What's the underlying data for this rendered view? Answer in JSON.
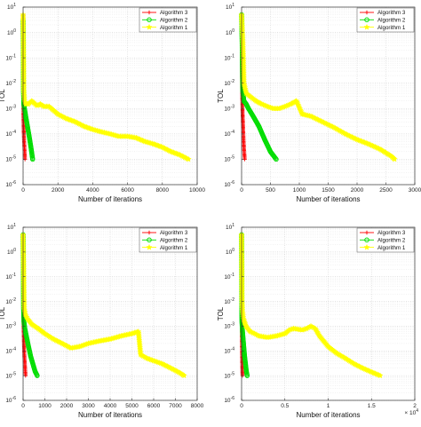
{
  "chart_data": [
    {
      "type": "line",
      "xlabel": "Number of iterations",
      "ylabel": "TOL",
      "xlim": [
        0,
        10000
      ],
      "xticks": [
        "0",
        "2000",
        "4000",
        "6000",
        "8000",
        "10000"
      ],
      "xtick_values": [
        0,
        2000,
        4000,
        6000,
        8000,
        10000
      ],
      "x_multiplier": "",
      "yscale": "log",
      "ylim": [
        1e-06,
        10
      ],
      "yticks_exp": [
        "-6",
        "-5",
        "-4",
        "-3",
        "-2",
        "-1",
        "0",
        "1"
      ],
      "grid": true,
      "legend_position": "top-right",
      "series": [
        {
          "name": "Algorithm  3",
          "color": "#ff0000",
          "marker": "plus",
          "x": [
            0,
            3,
            10,
            20,
            40,
            60,
            90,
            110
          ],
          "y": [
            5,
            1,
            0.01,
            0.0005,
            0.0001,
            5e-05,
            2e-05,
            1e-05
          ]
        },
        {
          "name": "Algorithm  2",
          "color": "#00dd00",
          "marker": "circle",
          "x": [
            0,
            10,
            20,
            40,
            80,
            150,
            250,
            350,
            450,
            550
          ],
          "y": [
            3,
            0.3,
            0.005,
            0.0015,
            0.001,
            0.0005,
            0.0002,
            8e-05,
            3e-05,
            1e-05
          ]
        },
        {
          "name": "Algorithm  1",
          "color": "#ffff00",
          "marker": "star",
          "x": [
            0,
            20,
            40,
            80,
            150,
            300,
            500,
            800,
            1000,
            1200,
            1500,
            2000,
            2500,
            3000,
            3500,
            4000,
            4500,
            5000,
            5500,
            6000,
            6500,
            7000,
            7500,
            8000,
            8500,
            9000,
            9500
          ],
          "y": [
            5,
            0.5,
            0.005,
            0.002,
            0.0015,
            0.0015,
            0.002,
            0.0013,
            0.0015,
            0.0012,
            0.0012,
            0.0006,
            0.0004,
            0.0003,
            0.0002,
            0.00015,
            0.00012,
            0.0001,
            8e-05,
            8e-05,
            7e-05,
            5e-05,
            4e-05,
            3e-05,
            2e-05,
            1.5e-05,
            1e-05
          ]
        }
      ]
    },
    {
      "type": "line",
      "xlabel": "Number of iterations",
      "ylabel": "TOL",
      "xlim": [
        0,
        3000
      ],
      "xticks": [
        "0",
        "500",
        "1000",
        "1500",
        "2000",
        "2500",
        "3000"
      ],
      "xtick_values": [
        0,
        500,
        1000,
        1500,
        2000,
        2500,
        3000
      ],
      "x_multiplier": "",
      "yscale": "log",
      "ylim": [
        1e-06,
        10
      ],
      "yticks_exp": [
        "-6",
        "-5",
        "-4",
        "-3",
        "-2",
        "-1",
        "0",
        "1"
      ],
      "grid": true,
      "legend_position": "top-right",
      "series": [
        {
          "name": "Algorithm  3",
          "color": "#ff0000",
          "marker": "plus",
          "x": [
            0,
            3,
            8,
            15,
            25,
            35,
            45,
            55
          ],
          "y": [
            5,
            1,
            0.01,
            0.001,
            0.0002,
            5e-05,
            2e-05,
            1e-05
          ]
        },
        {
          "name": "Algorithm  2",
          "color": "#00dd00",
          "marker": "circle",
          "x": [
            0,
            10,
            20,
            40,
            80,
            120,
            200,
            300,
            400,
            500,
            600
          ],
          "y": [
            5,
            0.3,
            0.005,
            0.002,
            0.0015,
            0.001,
            0.0005,
            0.0002,
            6e-05,
            2e-05,
            1e-05
          ]
        },
        {
          "name": "Algorithm  1",
          "color": "#ffff00",
          "marker": "star",
          "x": [
            0,
            20,
            40,
            80,
            150,
            250,
            350,
            450,
            550,
            650,
            750,
            850,
            950,
            1050,
            1200,
            1400,
            1600,
            1800,
            2000,
            2200,
            2400,
            2600,
            2650
          ],
          "y": [
            5,
            0.5,
            0.01,
            0.004,
            0.003,
            0.002,
            0.0015,
            0.0012,
            0.001,
            0.001,
            0.0012,
            0.0015,
            0.002,
            0.0006,
            0.0005,
            0.0003,
            0.00018,
            0.0001,
            6e-05,
            4e-05,
            2.5e-05,
            1.3e-05,
            1e-05
          ]
        }
      ]
    },
    {
      "type": "line",
      "xlabel": "Number of iterations",
      "ylabel": "TOL",
      "xlim": [
        0,
        8000
      ],
      "xticks": [
        "0",
        "1000",
        "2000",
        "3000",
        "4000",
        "5000",
        "6000",
        "7000",
        "8000"
      ],
      "xtick_values": [
        0,
        1000,
        2000,
        3000,
        4000,
        5000,
        6000,
        7000,
        8000
      ],
      "x_multiplier": "",
      "yscale": "log",
      "ylim": [
        1e-06,
        10
      ],
      "yticks_exp": [
        "-6",
        "-5",
        "-4",
        "-3",
        "-2",
        "-1",
        "0",
        "1"
      ],
      "grid": true,
      "legend_position": "top-right",
      "series": [
        {
          "name": "Algorithm  3",
          "color": "#ff0000",
          "marker": "plus",
          "x": [
            0,
            3,
            10,
            20,
            40,
            60,
            80,
            100,
            115
          ],
          "y": [
            5,
            1,
            0.01,
            0.001,
            0.0002,
            6e-05,
            3e-05,
            1.5e-05,
            1e-05
          ]
        },
        {
          "name": "Algorithm  2",
          "color": "#00dd00",
          "marker": "circle",
          "x": [
            0,
            10,
            20,
            40,
            80,
            150,
            250,
            350,
            450,
            550,
            650
          ],
          "y": [
            5,
            0.3,
            0.005,
            0.0015,
            0.0008,
            0.0004,
            0.00015,
            6e-05,
            3e-05,
            1.5e-05,
            1e-05
          ]
        },
        {
          "name": "Algorithm  1",
          "color": "#ffff00",
          "marker": "star",
          "x": [
            0,
            20,
            50,
            100,
            200,
            400,
            700,
            1000,
            1400,
            1800,
            2200,
            2600,
            3000,
            3500,
            4000,
            4500,
            5000,
            5300,
            5400,
            5700,
            6000,
            6400,
            6800,
            7200,
            7400
          ],
          "y": [
            5,
            0.5,
            0.005,
            0.003,
            0.002,
            0.0012,
            0.0008,
            0.0005,
            0.0003,
            0.0002,
            0.00013,
            0.00015,
            0.0002,
            0.00025,
            0.0003,
            0.0004,
            0.0005,
            0.0006,
            7e-05,
            5e-05,
            4e-05,
            3e-05,
            2e-05,
            1.3e-05,
            1e-05
          ]
        }
      ]
    },
    {
      "type": "line",
      "xlabel": "Number of iterations",
      "ylabel": "TOL",
      "xlim": [
        0,
        2
      ],
      "xticks": [
        "0",
        "0.5",
        "1",
        "1.5",
        "2"
      ],
      "xtick_values": [
        0,
        0.5,
        1,
        1.5,
        2
      ],
      "x_multiplier": "× 10",
      "x_multiplier_exp": "4",
      "yscale": "log",
      "ylim": [
        1e-06,
        10
      ],
      "yticks_exp": [
        "-6",
        "-5",
        "-4",
        "-3",
        "-2",
        "-1",
        "0",
        "1"
      ],
      "grid": true,
      "legend_position": "top-right",
      "series": [
        {
          "name": "Algorithm  3",
          "color": "#ff0000",
          "marker": "plus",
          "x": [
            0,
            0.0003,
            0.001,
            0.002,
            0.004,
            0.006,
            0.008,
            0.0105
          ],
          "y": [
            5,
            1,
            0.01,
            0.001,
            0.0002,
            5e-05,
            2e-05,
            1e-05
          ]
        },
        {
          "name": "Algorithm  2",
          "color": "#00dd00",
          "marker": "circle",
          "x": [
            0,
            0.001,
            0.002,
            0.004,
            0.008,
            0.015,
            0.025,
            0.035,
            0.045,
            0.055,
            0.065
          ],
          "y": [
            5,
            0.3,
            0.005,
            0.0015,
            0.0008,
            0.0004,
            0.00015,
            6e-05,
            3e-05,
            1.5e-05,
            1e-05
          ]
        },
        {
          "name": "Algorithm  1",
          "color": "#ffff00",
          "marker": "star",
          "x": [
            0,
            0.002,
            0.005,
            0.01,
            0.02,
            0.05,
            0.1,
            0.15,
            0.2,
            0.3,
            0.4,
            0.5,
            0.55,
            0.6,
            0.7,
            0.75,
            0.8,
            0.85,
            0.9,
            1.0,
            1.1,
            1.2,
            1.3,
            1.4,
            1.5,
            1.6
          ],
          "y": [
            5,
            0.5,
            0.01,
            0.004,
            0.002,
            0.001,
            0.0006,
            0.0005,
            0.0004,
            0.00035,
            0.0004,
            0.0005,
            0.0007,
            0.0008,
            0.0007,
            0.0008,
            0.001,
            0.0008,
            0.0004,
            0.00015,
            8e-05,
            5e-05,
            3e-05,
            2e-05,
            1.4e-05,
            1e-05
          ]
        }
      ]
    }
  ]
}
